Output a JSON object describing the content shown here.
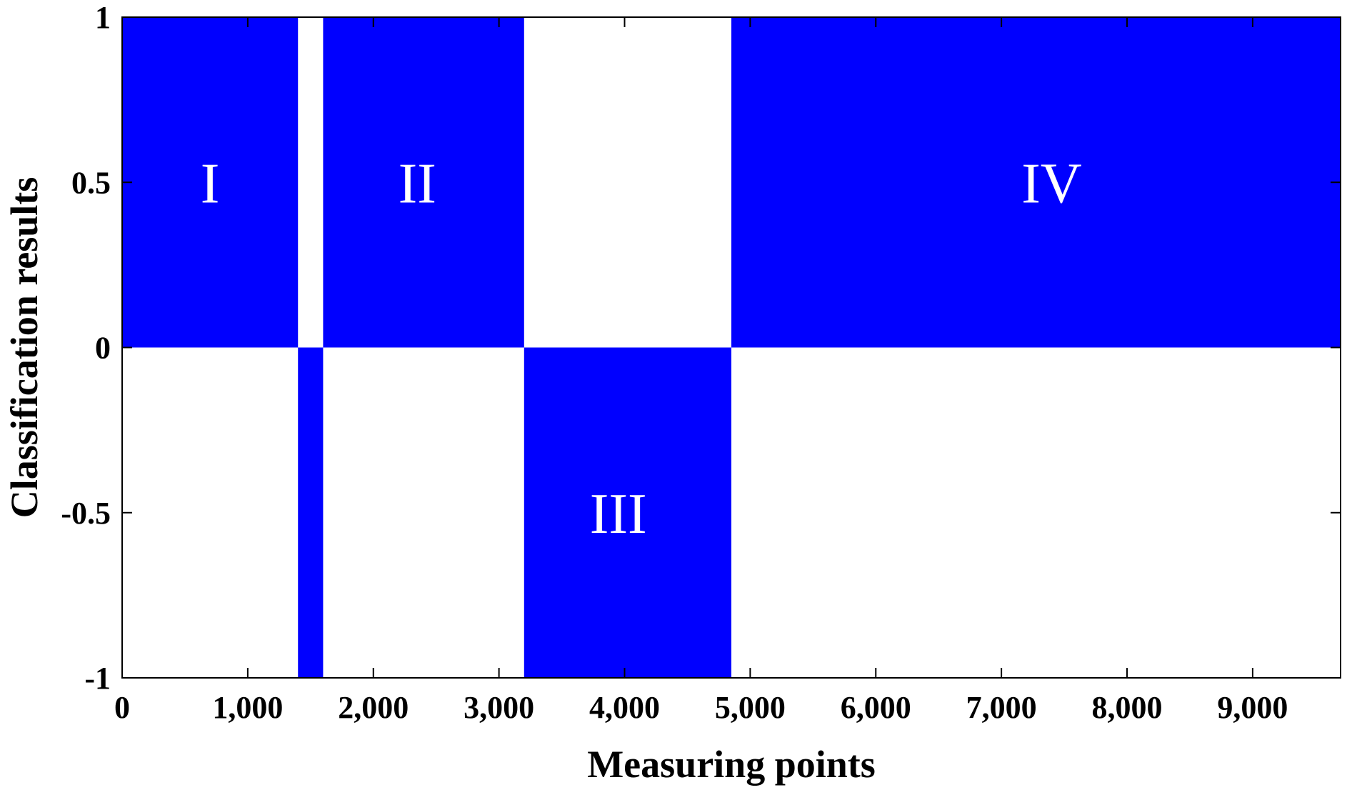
{
  "chart_data": {
    "type": "area",
    "xlabel": "Measuring points",
    "ylabel": "Classification results",
    "xlim": [
      0,
      9700
    ],
    "ylim": [
      -1,
      1
    ],
    "x_ticks": [
      {
        "value": 0,
        "label": "0"
      },
      {
        "value": 1000,
        "label": "1,000"
      },
      {
        "value": 2000,
        "label": "2,000"
      },
      {
        "value": 3000,
        "label": "3,000"
      },
      {
        "value": 4000,
        "label": "4,000"
      },
      {
        "value": 5000,
        "label": "5,000"
      },
      {
        "value": 6000,
        "label": "6,000"
      },
      {
        "value": 7000,
        "label": "7,000"
      },
      {
        "value": 8000,
        "label": "8,000"
      },
      {
        "value": 9000,
        "label": "9,000"
      }
    ],
    "y_ticks": [
      {
        "value": 1,
        "label": "1"
      },
      {
        "value": 0.5,
        "label": "0.5"
      },
      {
        "value": 0,
        "label": "0"
      },
      {
        "value": -0.5,
        "label": "-0.5"
      },
      {
        "value": -1,
        "label": "-1"
      }
    ],
    "grid": false,
    "fill_color": "#0000FF",
    "segments": [
      {
        "x_start": 0,
        "x_end": 1400,
        "value": 1
      },
      {
        "x_start": 1400,
        "x_end": 1600,
        "value": -1
      },
      {
        "x_start": 1600,
        "x_end": 3200,
        "value": 1
      },
      {
        "x_start": 3200,
        "x_end": 4850,
        "value": -1
      },
      {
        "x_start": 4850,
        "x_end": 9700,
        "value": 1
      }
    ],
    "annotations": [
      {
        "text": "I",
        "x": 700,
        "y": 0.5
      },
      {
        "text": "II",
        "x": 2350,
        "y": 0.5
      },
      {
        "text": "III",
        "x": 3950,
        "y": -0.5
      },
      {
        "text": "IV",
        "x": 7400,
        "y": 0.5
      }
    ]
  }
}
